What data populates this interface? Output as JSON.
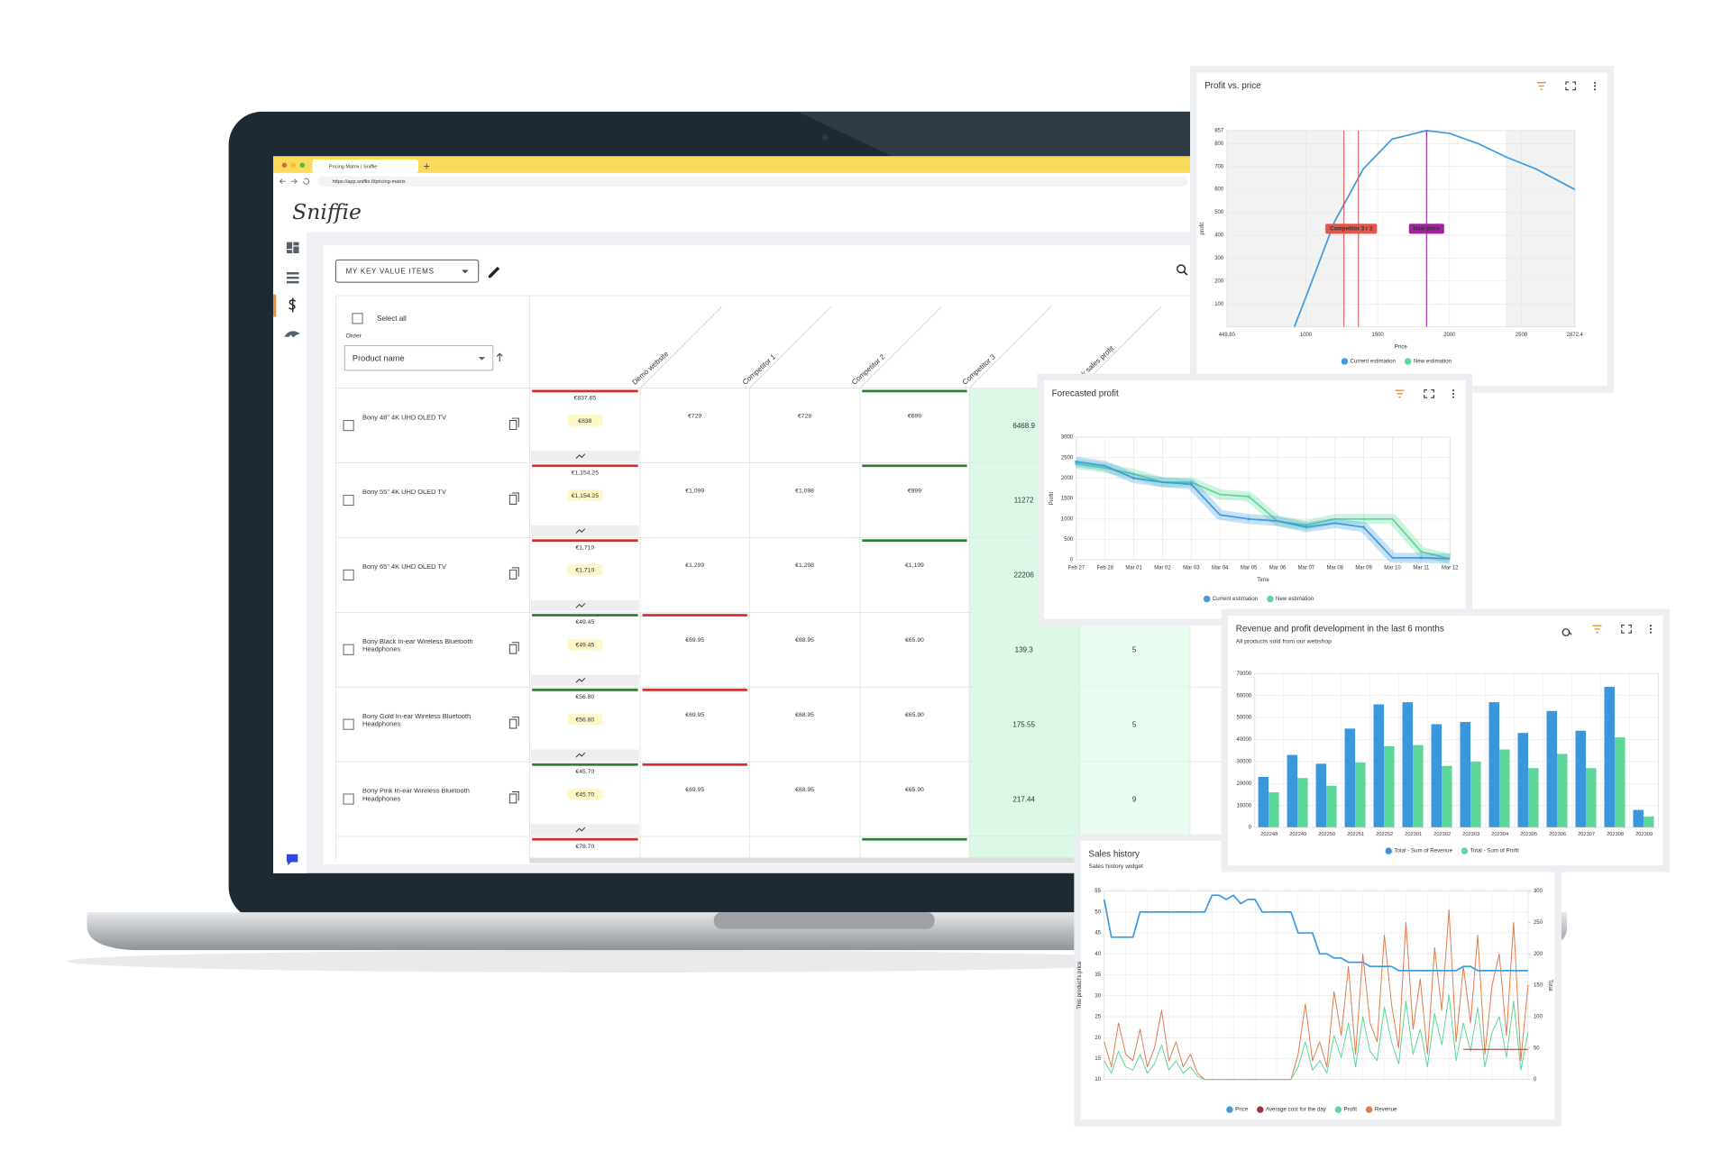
{
  "browser": {
    "tab": "Pricing Matrix | Sniffie",
    "url": "https://app.sniffie.fi/pricing-matrix"
  },
  "app": {
    "logo": "Sniffie",
    "list_selector": "MY KEY VALUE ITEMS",
    "select_all": "Select all",
    "order_label": "Order",
    "order_value": "Product name"
  },
  "table": {
    "columns": [
      "Demo website",
      "Competitor 1",
      "Competitor 2",
      "Competitor 3",
      "week sales profit"
    ],
    "rows": [
      {
        "product": "Bony 48\" 4K UHD OLED TV",
        "demo_price": "€837.65",
        "demo_suggested": "€838",
        "competitors": [
          "€729",
          "€728",
          "€699"
        ],
        "profit": 6468.9,
        "bars": [
          "red",
          null,
          null,
          "green"
        ]
      },
      {
        "product": "Bony 55\" 4K UHD OLED TV",
        "demo_price": "€1,154.25",
        "demo_suggested": "€1,154.25",
        "competitors": [
          "€1,099",
          "€1,098",
          "€999"
        ],
        "profit": 11272,
        "bars": [
          "red",
          null,
          null,
          "green"
        ]
      },
      {
        "product": "Bony 65\" 4K UHD OLED TV",
        "demo_price": "€1,710",
        "demo_suggested": "€1,710",
        "competitors": [
          "€1,299",
          "€1,298",
          "€1,199"
        ],
        "profit": 22206,
        "bars": [
          "red",
          null,
          null,
          "green"
        ]
      },
      {
        "product": "Bony Black In-ear Wireless Bluetooth Headphones",
        "demo_price": "€49.45",
        "demo_suggested": "€49.45",
        "competitors": [
          "€69.95",
          "€68.95",
          "€65.90"
        ],
        "profit": 139.3,
        "units": 5,
        "bars": [
          "green",
          "red",
          null,
          null
        ]
      },
      {
        "product": "Bony Gold In-ear Wireless Bluetooth Headphones",
        "demo_price": "€56.80",
        "demo_suggested": "€56.80",
        "competitors": [
          "€69.95",
          "€68.95",
          "€65.90"
        ],
        "profit": 175.55,
        "units": 5,
        "bars": [
          "green",
          "red",
          null,
          null
        ]
      },
      {
        "product": "Bony Pink In-ear Wireless Bluetooth Headphones",
        "demo_price": "€45.70",
        "demo_suggested": "€45.70",
        "competitors": [
          "€69.95",
          "€68.95",
          "€65.90"
        ],
        "profit": 217.44,
        "units": 9,
        "bars": [
          "green",
          "red",
          null,
          null
        ]
      },
      {
        "demo_price": "€78.70",
        "bars": [
          "red",
          null,
          null,
          "green"
        ]
      }
    ]
  },
  "chart_data": [
    {
      "type": "line",
      "title": "Profit vs. price",
      "x_label": "Price",
      "y_label": "profit",
      "x": [
        920,
        1000,
        1200,
        1400,
        1600,
        1840,
        2000,
        2200,
        2400,
        2600,
        2872.4
      ],
      "series": [
        {
          "name": "Current estimation",
          "color": "#3d9be0",
          "values": [
            0,
            130,
            460,
            690,
            820,
            857,
            845,
            800,
            740,
            690,
            600
          ]
        }
      ],
      "legend_only": [
        {
          "name": "New estimation",
          "color": "#5cd699"
        }
      ],
      "xlim": [
        449.8,
        2872.4
      ],
      "xticks": [
        {
          "value": 449.8,
          "label": "449.80"
        },
        1000,
        1500,
        2000,
        2500,
        2872.4
      ],
      "ylim": [
        0,
        857
      ],
      "yticks": [
        100,
        200,
        300,
        400,
        500,
        600,
        700,
        800,
        857
      ],
      "shaded": [
        [
          449.8,
          1265
        ],
        [
          2390,
          2872.4
        ]
      ],
      "markers": [
        {
          "label": "Competitor 3 r 2",
          "color": "#e0574f",
          "values": [
            1265,
            1366
          ]
        },
        {
          "label": "New price",
          "color": "#a3239e",
          "values": [
            1840
          ]
        }
      ],
      "grid": true
    },
    {
      "type": "line",
      "title": "Forecasted profit",
      "x_label": "Time",
      "y_label": "Profit",
      "categories": [
        "Feb 27",
        "Feb 28",
        "Mar 01",
        "Mar 02",
        "Mar 03",
        "Mar 04",
        "Mar 05",
        "Mar 06",
        "Mar 07",
        "Mar 08",
        "Mar 09",
        "Mar 10",
        "Mar 11",
        "Mar 12"
      ],
      "series": [
        {
          "name": "Current estimation",
          "color": "#3d9be0",
          "values": [
            2400,
            2300,
            2000,
            1900,
            1850,
            1100,
            1000,
            950,
            800,
            900,
            800,
            50,
            50,
            30
          ]
        },
        {
          "name": "New estimation",
          "color": "#5cd699",
          "values": [
            2350,
            2250,
            2100,
            1900,
            1900,
            1600,
            1550,
            950,
            850,
            1000,
            1000,
            1000,
            200,
            30
          ]
        }
      ],
      "ylim": [
        0,
        3000
      ],
      "yticks": [
        0,
        500,
        1000,
        1500,
        2000,
        2500,
        3000
      ],
      "grid": true,
      "band": true
    },
    {
      "type": "line",
      "title": "Sales history",
      "subtitle": "Sales history widget",
      "y_label": "This product's price",
      "y2_label": "Total",
      "series": [
        {
          "name": "Price",
          "color": "#3d9be0",
          "values": [
            53,
            44,
            44,
            44,
            44,
            50,
            50,
            50,
            50,
            50,
            50,
            50,
            50,
            50,
            50,
            54,
            54,
            53,
            54,
            52,
            53,
            53,
            50,
            50,
            50,
            50,
            50,
            45,
            45,
            45,
            40,
            40,
            39,
            39,
            38,
            38,
            38,
            37,
            37,
            37,
            37,
            36,
            36,
            36,
            36,
            36,
            36,
            36,
            36,
            36,
            37,
            37,
            36,
            36,
            36,
            36,
            36,
            36,
            36,
            36
          ]
        },
        {
          "name": "Average cost for the day",
          "color": "#a0343e",
          "axis": "y2",
          "values": [
            null,
            null,
            null,
            null,
            null,
            null,
            null,
            null,
            null,
            null,
            null,
            null,
            null,
            null,
            null,
            null,
            null,
            null,
            null,
            null,
            null,
            null,
            null,
            null,
            null,
            null,
            null,
            null,
            null,
            null,
            null,
            null,
            null,
            null,
            null,
            null,
            null,
            null,
            null,
            null,
            null,
            null,
            null,
            null,
            null,
            null,
            null,
            null,
            null,
            null,
            48,
            48,
            48,
            48,
            48,
            48,
            48,
            48,
            48,
            48
          ]
        },
        {
          "name": "Profit",
          "color": "#5cd699",
          "axis": "y2",
          "values": [
            30,
            10,
            45,
            20,
            15,
            40,
            10,
            25,
            55,
            15,
            30,
            10,
            20,
            5,
            0,
            0,
            0,
            0,
            0,
            0,
            0,
            0,
            0,
            0,
            0,
            0,
            0,
            20,
            60,
            15,
            30,
            10,
            70,
            35,
            90,
            20,
            100,
            45,
            30,
            115,
            60,
            25,
            125,
            40,
            80,
            20,
            105,
            55,
            135,
            30,
            90,
            45,
            115,
            20,
            75,
            100,
            35,
            125,
            15,
            75
          ]
        },
        {
          "name": "Revenue",
          "color": "#e07b4a",
          "axis": "y2",
          "values": [
            60,
            20,
            90,
            40,
            30,
            80,
            20,
            50,
            110,
            30,
            60,
            20,
            40,
            10,
            0,
            0,
            0,
            0,
            0,
            0,
            0,
            0,
            0,
            0,
            0,
            0,
            0,
            40,
            120,
            30,
            60,
            20,
            140,
            70,
            180,
            40,
            200,
            90,
            60,
            230,
            120,
            50,
            250,
            80,
            160,
            40,
            210,
            110,
            270,
            60,
            180,
            90,
            230,
            40,
            150,
            200,
            70,
            250,
            30,
            150
          ]
        }
      ],
      "ylim": [
        10,
        55
      ],
      "yticks": [
        10,
        15,
        20,
        25,
        30,
        35,
        40,
        45,
        50,
        55
      ],
      "y2lim": [
        0,
        300
      ],
      "y2ticks": [
        0,
        50,
        100,
        150,
        200,
        250,
        300
      ],
      "grid": true
    },
    {
      "type": "bar",
      "title": "Revenue and profit development in the last 6 months",
      "subtitle": "All products sold from our webshop",
      "categories": [
        "202248",
        "202249",
        "202250",
        "202251",
        "202252",
        "202301",
        "202302",
        "202303",
        "202304",
        "202305",
        "202306",
        "202307",
        "202308",
        "202309"
      ],
      "series": [
        {
          "name": "Total - Sum of Revenue",
          "color": "#3b97dc",
          "values": [
            23000,
            33000,
            29000,
            45000,
            56000,
            57000,
            47000,
            48000,
            57000,
            43000,
            53000,
            44000,
            64000,
            8000
          ]
        },
        {
          "name": "Total - Sum of Profit",
          "color": "#5cd699",
          "values": [
            16000,
            22500,
            19000,
            29500,
            37000,
            37500,
            28000,
            30000,
            35500,
            27000,
            33500,
            27000,
            41000,
            5000
          ]
        }
      ],
      "ylim": [
        0,
        70000
      ],
      "yticks": [
        0,
        10000,
        20000,
        30000,
        40000,
        50000,
        60000,
        70000
      ],
      "grid": true
    }
  ]
}
